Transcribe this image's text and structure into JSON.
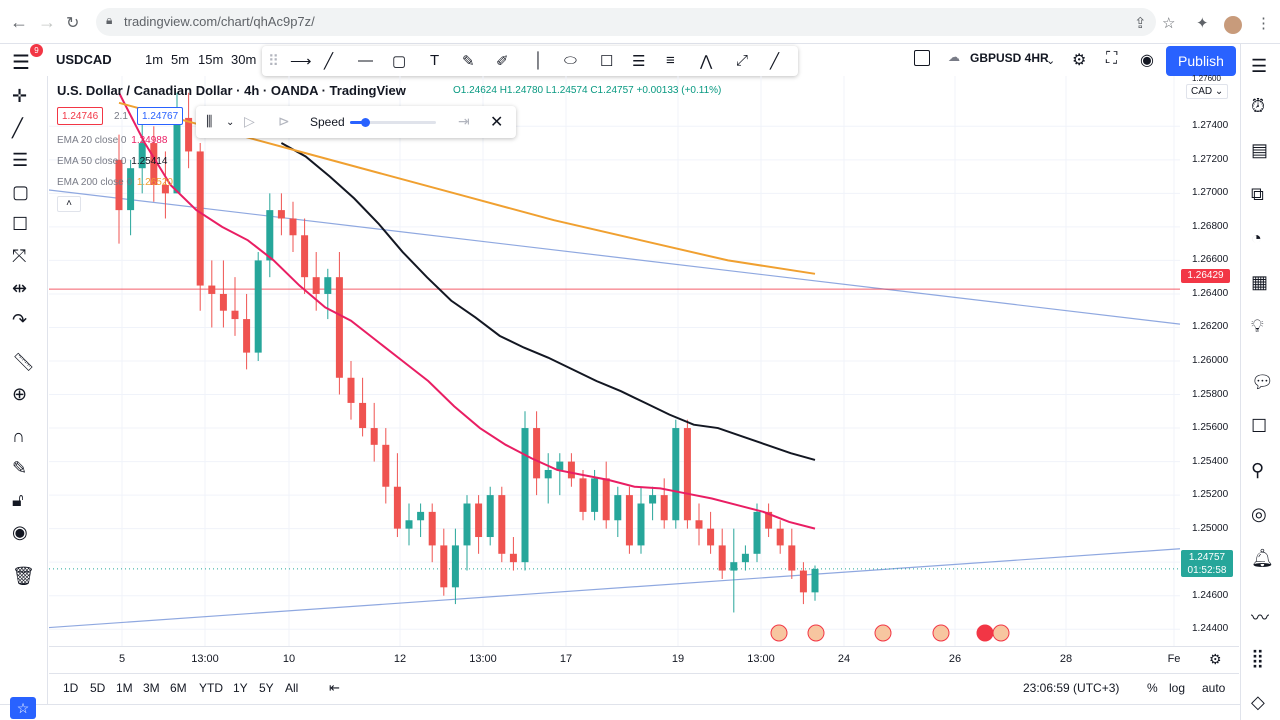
{
  "browser": {
    "url": "tradingview.com/chart/qhAc9p7z/",
    "icons": [
      "back-icon",
      "forward-icon",
      "reload-icon",
      "share-icon",
      "star-icon",
      "extensions-icon",
      "avatar"
    ]
  },
  "toolbar": {
    "menu_badge": "9",
    "symbol": "USDCAD",
    "timeframes": [
      "1m",
      "5m",
      "15m",
      "30m"
    ],
    "layout_name": "GBPUSD 4HR",
    "publish_label": "Publish"
  },
  "legend": {
    "title": "U.S. Dollar / Canadian Dollar · 4h · OANDA · TradingView",
    "ohlc": "O1.24624 H1.24780 L1.24574 C1.24757 +0.00133 (+0.11%)",
    "bid": "1.24746",
    "spread": "2.1",
    "ask": "1.24767",
    "ema20_label": "EMA 20 close 0",
    "ema20_value": "1.24988",
    "ema50_label": "EMA 50 close 0",
    "ema50_value": "1.25414",
    "ema200_label": "EMA 200 close 0",
    "ema200_value": "1.26520",
    "collapse": "˄"
  },
  "replay": {
    "speed_label": "Speed",
    "speed_level": 0.18
  },
  "price_scale": {
    "currency": "CAD",
    "top_partial": "1.27600",
    "ticks": [
      "1.27400",
      "1.27200",
      "1.27000",
      "1.26800",
      "1.26600",
      "1.26400",
      "1.26200",
      "1.26000",
      "1.25800",
      "1.25600",
      "1.25400",
      "1.25200",
      "1.25000",
      "1.24800",
      "1.24600",
      "1.24400"
    ],
    "hline_price": "1.26429",
    "last_price": "1.24757",
    "countdown": "01:52:58"
  },
  "time_scale": {
    "ticks": [
      "5",
      "13:00",
      "10",
      "12",
      "13:00",
      "17",
      "19",
      "13:00",
      "24",
      "26",
      "28",
      "Fe"
    ]
  },
  "bottom": {
    "ranges": [
      "1D",
      "5D",
      "1M",
      "3M",
      "6M",
      "YTD",
      "1Y",
      "5Y",
      "All"
    ],
    "clock": "23:06:59 (UTC+3)",
    "percent": "%",
    "log": "log",
    "auto": "auto"
  },
  "colors": {
    "up": "#26a69a",
    "down": "#ef5350",
    "ema20": "#e91e63",
    "ema50": "#131722",
    "ema200": "#f0a030",
    "trendline": "#8fa8e0",
    "hline": "#f23645",
    "accent": "#2962ff"
  },
  "chart_data": {
    "type": "candlestick",
    "symbol": "USDCAD",
    "timeframe": "4h",
    "ylim": [
      1.243,
      1.277
    ],
    "candles": [
      [
        1.272,
        1.2735,
        1.267,
        1.269
      ],
      [
        1.269,
        1.272,
        1.2675,
        1.2715
      ],
      [
        1.2715,
        1.2745,
        1.27,
        1.273
      ],
      [
        1.273,
        1.274,
        1.2695,
        1.2705
      ],
      [
        1.2705,
        1.2725,
        1.2685,
        1.27
      ],
      [
        1.27,
        1.276,
        1.27,
        1.2745
      ],
      [
        1.2745,
        1.276,
        1.2715,
        1.2725
      ],
      [
        1.2725,
        1.273,
        1.263,
        1.2645
      ],
      [
        1.2645,
        1.266,
        1.262,
        1.264
      ],
      [
        1.264,
        1.266,
        1.262,
        1.263
      ],
      [
        1.263,
        1.265,
        1.2615,
        1.2625
      ],
      [
        1.2625,
        1.264,
        1.2595,
        1.2605
      ],
      [
        1.2605,
        1.2665,
        1.26,
        1.266
      ],
      [
        1.266,
        1.27,
        1.265,
        1.269
      ],
      [
        1.269,
        1.27,
        1.2675,
        1.2685
      ],
      [
        1.2685,
        1.2695,
        1.2665,
        1.2675
      ],
      [
        1.2675,
        1.2685,
        1.264,
        1.265
      ],
      [
        1.265,
        1.2665,
        1.263,
        1.264
      ],
      [
        1.264,
        1.2655,
        1.2625,
        1.265
      ],
      [
        1.265,
        1.2665,
        1.258,
        1.259
      ],
      [
        1.259,
        1.26,
        1.2565,
        1.2575
      ],
      [
        1.2575,
        1.259,
        1.2555,
        1.256
      ],
      [
        1.256,
        1.2575,
        1.254,
        1.255
      ],
      [
        1.255,
        1.256,
        1.2515,
        1.2525
      ],
      [
        1.2525,
        1.2545,
        1.2495,
        1.25
      ],
      [
        1.25,
        1.2515,
        1.249,
        1.2505
      ],
      [
        1.2505,
        1.2515,
        1.2495,
        1.251
      ],
      [
        1.251,
        1.2515,
        1.248,
        1.249
      ],
      [
        1.249,
        1.25,
        1.246,
        1.2465
      ],
      [
        1.2465,
        1.25,
        1.2455,
        1.249
      ],
      [
        1.249,
        1.252,
        1.2475,
        1.2515
      ],
      [
        1.2515,
        1.252,
        1.2485,
        1.2495
      ],
      [
        1.2495,
        1.2525,
        1.249,
        1.252
      ],
      [
        1.252,
        1.2525,
        1.248,
        1.2485
      ],
      [
        1.2485,
        1.2495,
        1.2475,
        1.248
      ],
      [
        1.248,
        1.257,
        1.2475,
        1.256
      ],
      [
        1.256,
        1.257,
        1.252,
        1.253
      ],
      [
        1.253,
        1.2545,
        1.2515,
        1.2535
      ],
      [
        1.2535,
        1.2545,
        1.252,
        1.254
      ],
      [
        1.254,
        1.2545,
        1.2525,
        1.253
      ],
      [
        1.253,
        1.2535,
        1.2505,
        1.251
      ],
      [
        1.251,
        1.2535,
        1.2505,
        1.253
      ],
      [
        1.253,
        1.254,
        1.25,
        1.2505
      ],
      [
        1.2505,
        1.2525,
        1.2495,
        1.252
      ],
      [
        1.252,
        1.2525,
        1.2485,
        1.249
      ],
      [
        1.249,
        1.2525,
        1.2485,
        1.2515
      ],
      [
        1.2515,
        1.2525,
        1.2505,
        1.252
      ],
      [
        1.252,
        1.253,
        1.25,
        1.2505
      ],
      [
        1.2505,
        1.2565,
        1.25,
        1.256
      ],
      [
        1.256,
        1.2565,
        1.25,
        1.2505
      ],
      [
        1.2505,
        1.2515,
        1.249,
        1.25
      ],
      [
        1.25,
        1.251,
        1.2485,
        1.249
      ],
      [
        1.249,
        1.25,
        1.247,
        1.2475
      ],
      [
        1.2475,
        1.25,
        1.245,
        1.248
      ],
      [
        1.248,
        1.249,
        1.2475,
        1.2485
      ],
      [
        1.2485,
        1.2515,
        1.248,
        1.251
      ],
      [
        1.251,
        1.2515,
        1.2495,
        1.25
      ],
      [
        1.25,
        1.2505,
        1.2485,
        1.249
      ],
      [
        1.249,
        1.25,
        1.247,
        1.2475
      ],
      [
        1.2475,
        1.248,
        1.2455,
        1.2462
      ],
      [
        1.2462,
        1.2478,
        1.2457,
        1.2476
      ]
    ],
    "ema20": [
      1.276,
      1.273,
      1.2705,
      1.269,
      1.268,
      1.2672,
      1.266,
      1.2645,
      1.2632,
      1.2624,
      1.2612,
      1.26,
      1.2588,
      1.2573,
      1.256,
      1.255,
      1.2542,
      1.2535,
      1.2532,
      1.2529,
      1.2525,
      1.2524,
      1.2521,
      1.2518,
      1.2514,
      1.251,
      1.2504,
      1.25
    ],
    "ema50": [
      1.273,
      1.2722,
      1.271,
      1.2697,
      1.2682,
      1.2665,
      1.265,
      1.2636,
      1.2626,
      1.2615,
      1.2608,
      1.2602,
      1.2595,
      1.2588,
      1.2582,
      1.2575,
      1.2568,
      1.2562,
      1.256,
      1.2555,
      1.255,
      1.2545,
      1.2541
    ],
    "ema200": [
      1.2754,
      1.274,
      1.2726,
      1.2712,
      1.2698,
      1.2684,
      1.2672,
      1.266,
      1.2652
    ],
    "hline": 1.26429,
    "trendlines": [
      {
        "name": "resistance",
        "from": [
          0,
          1.2702
        ],
        "to": [
          1,
          1.2622
        ]
      },
      {
        "name": "support",
        "from": [
          0,
          1.2441
        ],
        "to": [
          1,
          1.2488
        ]
      }
    ],
    "events": [
      "us",
      "us",
      "us-us",
      "us-us",
      "ca-us",
      "us"
    ]
  }
}
